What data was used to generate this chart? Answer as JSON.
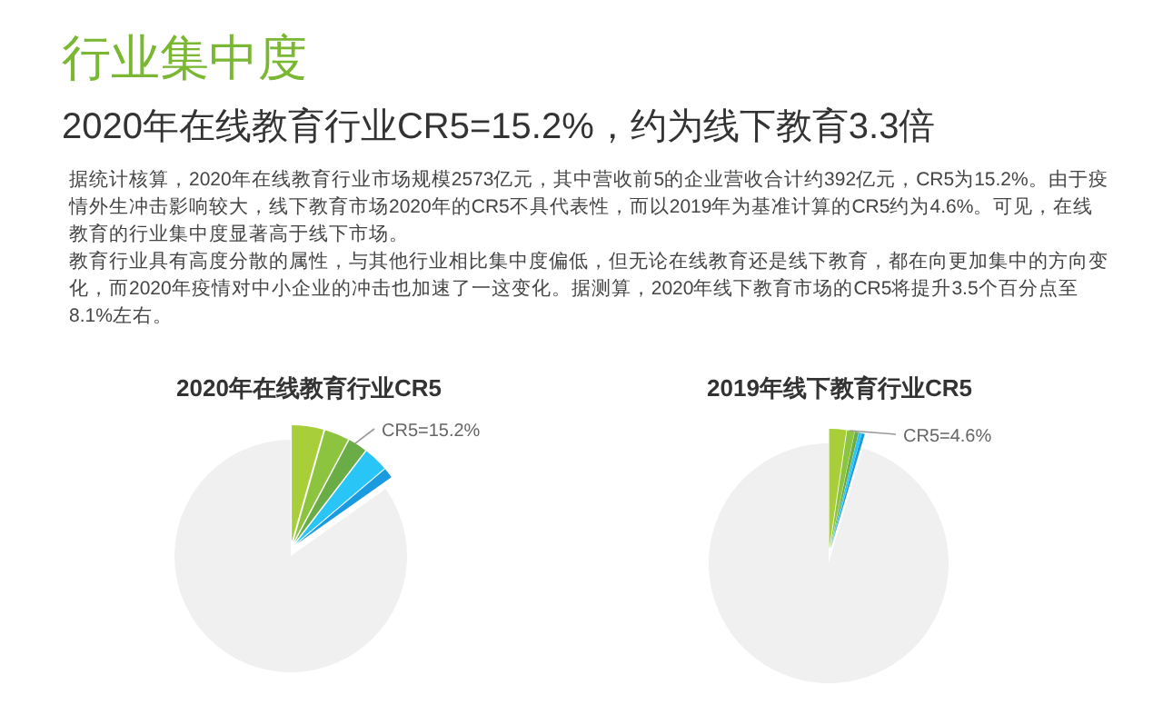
{
  "chart_data": [
    {
      "type": "other",
      "title": "行业集中度",
      "subtitle": "2020年在线教育行业CR5=15.2%，约为线下教育3.3倍",
      "annotations": [
        "据统计核算，2020年在线教育行业市场规模2573亿元，其中营收前5的企业营收合计约392亿元，CR5为15.2%。由于疫情外生冲击影响较大，线下教育市场2020年的CR5不具代表性，而以2019年为基准计算的CR5约为4.6%。可见，在线教育的行业集中度显著高于线下市场。",
        "教育行业具有高度分散的属性，与其他行业相比集中度偏低，但无论在线教育还是线下教育，都在向更加集中的方向变化，而2020年疫情对中小企业的冲击也加速了一这变化。据测算，2020年线下教育市场的CR5将提升3.5个百分点至8.1%左右。"
      ]
    },
    {
      "type": "pie",
      "title": "2020年在线教育行业CR5",
      "categories": [
        null,
        null,
        null,
        null,
        null,
        null
      ],
      "values": [
        4.4,
        3.4,
        2.6,
        3.4,
        1.4,
        84.8
      ],
      "colors": [
        "#a8cf3a",
        "#8cc43f",
        "#6aac46",
        "#29c5f6",
        "#1a9be0",
        "#f0f0f0"
      ],
      "annotations": [
        "CR5=15.2%"
      ]
    },
    {
      "type": "pie",
      "title": "2019年线下教育行业CR5",
      "categories": [
        null,
        null,
        null,
        null,
        null,
        null
      ],
      "values": [
        2.3,
        1.0,
        0.5,
        0.4,
        0.4,
        95.4
      ],
      "colors": [
        "#a8cf3a",
        "#8cc43f",
        "#6aac46",
        "#29c5f6",
        "#1a9be0",
        "#f0f0f0"
      ],
      "annotations": [
        "CR5=4.6%"
      ]
    }
  ]
}
